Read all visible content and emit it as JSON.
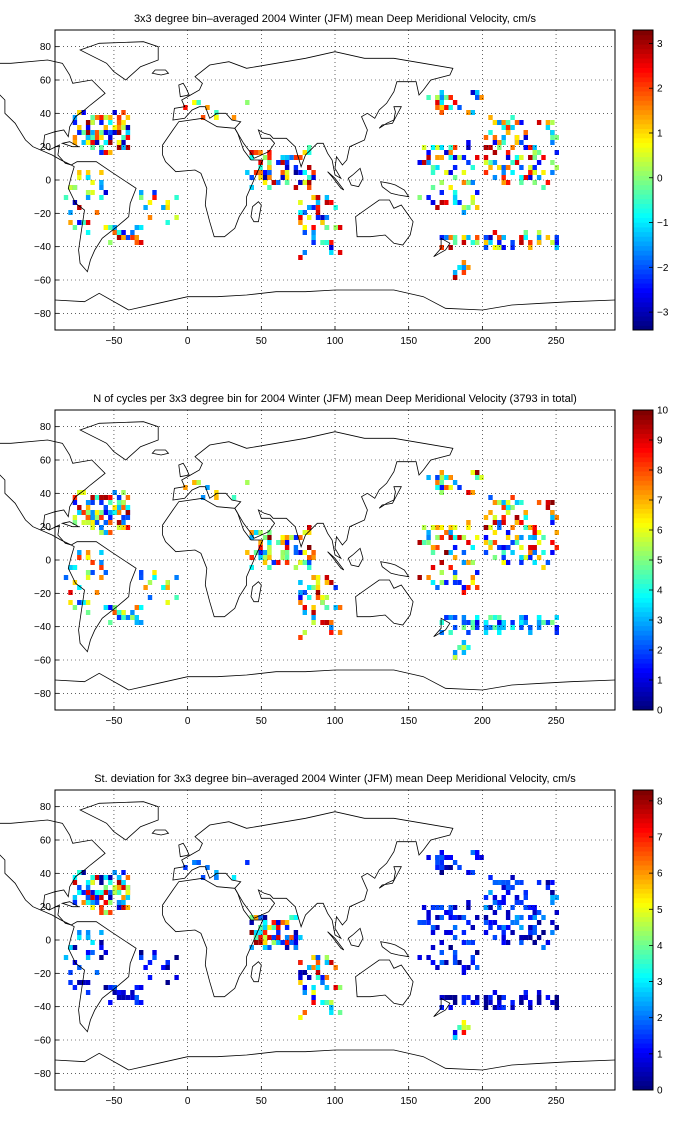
{
  "figure": {
    "background": "#ffffff",
    "colormap": "jet",
    "colormap_stops": [
      "#00008f",
      "#0000ff",
      "#00ffff",
      "#ffff00",
      "#ff0000",
      "#800000"
    ]
  },
  "chart_data": [
    {
      "type": "heatmap",
      "title": "3x3 degree bin–averaged 2004 Winter (JFM) mean Deep Meridional Velocity, cm/s",
      "xlabel": "",
      "ylabel": "",
      "xlim": [
        -90,
        290
      ],
      "ylim": [
        -90,
        90
      ],
      "x_ticks": [
        -50,
        0,
        50,
        100,
        150,
        200,
        250
      ],
      "y_ticks": [
        -80,
        -60,
        -40,
        -20,
        0,
        20,
        40,
        60,
        80
      ],
      "grid": true,
      "grid_style": "dotted",
      "colorbar": {
        "min": -3.4,
        "max": 3.3,
        "ticks": [
          -3,
          -2,
          -1,
          0,
          1,
          2,
          3
        ],
        "position": "right"
      },
      "bin_size_deg": 3,
      "clusters": [
        {
          "x": -60,
          "y": 28,
          "sx": 18,
          "sy": 12,
          "n": 90,
          "vmin": -3.2,
          "vmax": 3.2
        },
        {
          "x": -70,
          "y": -12,
          "sx": 14,
          "sy": 20,
          "n": 28,
          "vmin": -3,
          "vmax": 3
        },
        {
          "x": -45,
          "y": -34,
          "sx": 12,
          "sy": 4,
          "n": 24,
          "vmin": -3,
          "vmax": 3
        },
        {
          "x": -20,
          "y": -18,
          "sx": 12,
          "sy": 10,
          "n": 14,
          "vmin": -3,
          "vmax": 3
        },
        {
          "x": 20,
          "y": 40,
          "sx": 25,
          "sy": 6,
          "n": 10,
          "vmin": -3,
          "vmax": 3
        },
        {
          "x": 62,
          "y": 5,
          "sx": 22,
          "sy": 12,
          "n": 70,
          "vmin": -3.3,
          "vmax": 3.3
        },
        {
          "x": 88,
          "y": -30,
          "sx": 14,
          "sy": 18,
          "n": 45,
          "vmin": -3,
          "vmax": 3
        },
        {
          "x": 175,
          "y": 0,
          "sx": 20,
          "sy": 20,
          "n": 60,
          "vmin": -3,
          "vmax": 3
        },
        {
          "x": 225,
          "y": 15,
          "sx": 25,
          "sy": 20,
          "n": 110,
          "vmin": -3,
          "vmax": 3
        },
        {
          "x": 210,
          "y": -38,
          "sx": 40,
          "sy": 5,
          "n": 50,
          "vmin": -3,
          "vmax": 3
        },
        {
          "x": 185,
          "y": -55,
          "sx": 5,
          "sy": 5,
          "n": 8,
          "vmin": -3,
          "vmax": 3
        },
        {
          "x": 180,
          "y": 45,
          "sx": 20,
          "sy": 6,
          "n": 24,
          "vmin": -3,
          "vmax": 3
        }
      ]
    },
    {
      "type": "heatmap",
      "title": "N of cycles per 3x3 degree bin for 2004 Winter (JFM) mean Deep Meridional Velocity (3793 in total)",
      "xlabel": "",
      "ylabel": "",
      "xlim": [
        -90,
        290
      ],
      "ylim": [
        -90,
        90
      ],
      "x_ticks": [
        -50,
        0,
        50,
        100,
        150,
        200,
        250
      ],
      "y_ticks": [
        -80,
        -60,
        -40,
        -20,
        0,
        20,
        40,
        60,
        80
      ],
      "grid": true,
      "grid_style": "dotted",
      "colorbar": {
        "min": 0,
        "max": 10,
        "ticks": [
          0,
          1,
          2,
          3,
          4,
          5,
          6,
          7,
          8,
          9,
          10
        ],
        "position": "right"
      },
      "total_cycles": 3793,
      "bin_size_deg": 3,
      "clusters": [
        {
          "x": -60,
          "y": 28,
          "sx": 18,
          "sy": 12,
          "n": 90,
          "vmin": 1,
          "vmax": 10
        },
        {
          "x": -70,
          "y": -12,
          "sx": 14,
          "sy": 20,
          "n": 28,
          "vmin": 1,
          "vmax": 10
        },
        {
          "x": -45,
          "y": -34,
          "sx": 12,
          "sy": 4,
          "n": 24,
          "vmin": 1,
          "vmax": 8
        },
        {
          "x": -20,
          "y": -18,
          "sx": 12,
          "sy": 10,
          "n": 14,
          "vmin": 1,
          "vmax": 8
        },
        {
          "x": 20,
          "y": 40,
          "sx": 25,
          "sy": 6,
          "n": 10,
          "vmin": 1,
          "vmax": 10
        },
        {
          "x": 62,
          "y": 5,
          "sx": 22,
          "sy": 12,
          "n": 70,
          "vmin": 1,
          "vmax": 10
        },
        {
          "x": 88,
          "y": -30,
          "sx": 14,
          "sy": 18,
          "n": 45,
          "vmin": 1,
          "vmax": 10
        },
        {
          "x": 175,
          "y": 0,
          "sx": 20,
          "sy": 20,
          "n": 60,
          "vmin": 1,
          "vmax": 10
        },
        {
          "x": 225,
          "y": 15,
          "sx": 25,
          "sy": 20,
          "n": 110,
          "vmin": 1,
          "vmax": 10
        },
        {
          "x": 210,
          "y": -40,
          "sx": 40,
          "sy": 5,
          "n": 60,
          "vmin": 1,
          "vmax": 5
        },
        {
          "x": 185,
          "y": -55,
          "sx": 5,
          "sy": 5,
          "n": 8,
          "vmin": 1,
          "vmax": 6
        },
        {
          "x": 180,
          "y": 45,
          "sx": 20,
          "sy": 6,
          "n": 24,
          "vmin": 1,
          "vmax": 10
        }
      ]
    },
    {
      "type": "heatmap",
      "title": "St. deviation for 3x3 degree bin–averaged 2004 Winter (JFM) mean Deep Meridional Velocity, cm/s",
      "xlabel": "",
      "ylabel": "",
      "xlim": [
        -90,
        290
      ],
      "ylim": [
        -90,
        90
      ],
      "x_ticks": [
        -50,
        0,
        50,
        100,
        150,
        200,
        250
      ],
      "y_ticks": [
        -80,
        -60,
        -40,
        -20,
        0,
        20,
        40,
        60,
        80
      ],
      "grid": true,
      "grid_style": "dotted",
      "colorbar": {
        "min": 0,
        "max": 8.3,
        "ticks": [
          0,
          1,
          2,
          3,
          4,
          5,
          6,
          7,
          8
        ],
        "position": "right"
      },
      "bin_size_deg": 3,
      "clusters": [
        {
          "x": -60,
          "y": 28,
          "sx": 18,
          "sy": 12,
          "n": 90,
          "vmin": 0,
          "vmax": 8
        },
        {
          "x": -70,
          "y": -12,
          "sx": 14,
          "sy": 20,
          "n": 28,
          "vmin": 0,
          "vmax": 3
        },
        {
          "x": -45,
          "y": -34,
          "sx": 12,
          "sy": 4,
          "n": 24,
          "vmin": 0,
          "vmax": 2
        },
        {
          "x": -20,
          "y": -18,
          "sx": 12,
          "sy": 10,
          "n": 14,
          "vmin": 0,
          "vmax": 2
        },
        {
          "x": 20,
          "y": 40,
          "sx": 25,
          "sy": 6,
          "n": 10,
          "vmin": 0,
          "vmax": 3
        },
        {
          "x": 58,
          "y": 3,
          "sx": 16,
          "sy": 10,
          "n": 70,
          "vmin": 0,
          "vmax": 8.3
        },
        {
          "x": 88,
          "y": -30,
          "sx": 14,
          "sy": 18,
          "n": 45,
          "vmin": 0,
          "vmax": 8
        },
        {
          "x": 175,
          "y": 0,
          "sx": 20,
          "sy": 20,
          "n": 60,
          "vmin": 0,
          "vmax": 2
        },
        {
          "x": 225,
          "y": 15,
          "sx": 25,
          "sy": 20,
          "n": 110,
          "vmin": 0,
          "vmax": 2.5
        },
        {
          "x": 210,
          "y": -38,
          "sx": 40,
          "sy": 5,
          "n": 50,
          "vmin": 0,
          "vmax": 1.5
        },
        {
          "x": 185,
          "y": -55,
          "sx": 5,
          "sy": 5,
          "n": 8,
          "vmin": 0,
          "vmax": 8
        },
        {
          "x": 180,
          "y": 45,
          "sx": 20,
          "sy": 6,
          "n": 24,
          "vmin": 0,
          "vmax": 2
        }
      ]
    }
  ]
}
